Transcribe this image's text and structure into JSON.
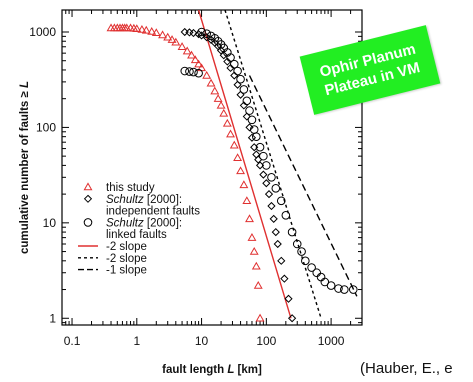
{
  "badge": {
    "line1": "Ophir Planum",
    "line2": "Plateau in VM",
    "color": "#22ee22"
  },
  "citation": "(Hauber, E., e",
  "chart_data": {
    "type": "scatter",
    "xscale": "log",
    "yscale": "log",
    "xlim": [
      0.07,
      3000
    ],
    "ylim": [
      0.85,
      1700
    ],
    "xlabel_parts": [
      "fault length ",
      "L",
      " [km]"
    ],
    "ylabel_parts": [
      "cumulative number of faults ≥ ",
      "L"
    ],
    "xticks": [
      {
        "value": 0.1,
        "label": "0.1"
      },
      {
        "value": 1,
        "label": "1"
      },
      {
        "value": 10,
        "label": "10"
      },
      {
        "value": 100,
        "label": "100"
      },
      {
        "value": 1000,
        "label": "1000"
      }
    ],
    "yticks": [
      {
        "value": 1,
        "label": "1"
      },
      {
        "value": 10,
        "label": "10"
      },
      {
        "value": 100,
        "label": "100"
      },
      {
        "value": 1000,
        "label": "1000"
      }
    ],
    "series": [
      {
        "name": "this study",
        "marker": "triangle",
        "color": "#e03030",
        "points": [
          [
            0.4,
            1100
          ],
          [
            0.45,
            1100
          ],
          [
            0.5,
            1100
          ],
          [
            0.55,
            1100
          ],
          [
            0.6,
            1100
          ],
          [
            0.65,
            1100
          ],
          [
            0.7,
            1100
          ],
          [
            0.8,
            1100
          ],
          [
            0.9,
            1090
          ],
          [
            1.0,
            1080
          ],
          [
            1.2,
            1060
          ],
          [
            1.4,
            1040
          ],
          [
            1.7,
            1010
          ],
          [
            2.0,
            980
          ],
          [
            2.5,
            930
          ],
          [
            3.0,
            880
          ],
          [
            3.5,
            830
          ],
          [
            4.0,
            780
          ],
          [
            5.0,
            700
          ],
          [
            6.0,
            630
          ],
          [
            7.0,
            570
          ],
          [
            8.0,
            510
          ],
          [
            9.0,
            460
          ],
          [
            10,
            420
          ],
          [
            12,
            350
          ],
          [
            14,
            290
          ],
          [
            16,
            240
          ],
          [
            18,
            200
          ],
          [
            20,
            170
          ],
          [
            22,
            140
          ],
          [
            25,
            110
          ],
          [
            28,
            85
          ],
          [
            32,
            65
          ],
          [
            36,
            48
          ],
          [
            40,
            35
          ],
          [
            45,
            25
          ],
          [
            50,
            17
          ],
          [
            55,
            11
          ],
          [
            60,
            7
          ],
          [
            65,
            5
          ],
          [
            70,
            3.5
          ],
          [
            75,
            2.2
          ],
          [
            80,
            1
          ]
        ]
      },
      {
        "name": "independent faults",
        "marker": "diamond",
        "color": "#000000",
        "points": [
          [
            5.5,
            1000
          ],
          [
            6.5,
            990
          ],
          [
            7.5,
            975
          ],
          [
            9,
            950
          ],
          [
            10,
            920
          ],
          [
            12,
            880
          ],
          [
            14,
            830
          ],
          [
            16,
            770
          ],
          [
            18,
            710
          ],
          [
            20,
            640
          ],
          [
            22,
            570
          ],
          [
            25,
            490
          ],
          [
            28,
            420
          ],
          [
            32,
            350
          ],
          [
            36,
            280
          ],
          [
            40,
            220
          ],
          [
            45,
            170
          ],
          [
            50,
            130
          ],
          [
            55,
            100
          ],
          [
            60,
            78
          ],
          [
            65,
            62
          ],
          [
            70,
            52
          ],
          [
            75,
            46
          ],
          [
            80,
            40
          ],
          [
            90,
            32
          ],
          [
            100,
            26
          ],
          [
            110,
            20
          ],
          [
            120,
            15
          ],
          [
            130,
            11
          ],
          [
            140,
            8
          ],
          [
            150,
            6
          ],
          [
            170,
            4
          ],
          [
            190,
            2.6
          ],
          [
            220,
            1.6
          ],
          [
            250,
            1
          ]
        ]
      },
      {
        "name": "linked faults",
        "marker": "circle",
        "color": "#000000",
        "points": [
          [
            5.5,
            390
          ],
          [
            6.5,
            385
          ],
          [
            7.5,
            380
          ],
          [
            9,
            370
          ],
          [
            10,
            1000
          ],
          [
            12,
            960
          ],
          [
            14,
            910
          ],
          [
            16,
            860
          ],
          [
            18,
            800
          ],
          [
            20,
            740
          ],
          [
            22,
            680
          ],
          [
            25,
            610
          ],
          [
            28,
            540
          ],
          [
            32,
            460
          ],
          [
            36,
            390
          ],
          [
            40,
            320
          ],
          [
            45,
            250
          ],
          [
            50,
            190
          ],
          [
            55,
            150
          ],
          [
            60,
            120
          ],
          [
            65,
            95
          ],
          [
            70,
            80
          ],
          [
            80,
            62
          ],
          [
            90,
            50
          ],
          [
            100,
            40
          ],
          [
            120,
            30
          ],
          [
            140,
            23
          ],
          [
            170,
            17
          ],
          [
            200,
            12
          ],
          [
            250,
            8
          ],
          [
            300,
            6
          ],
          [
            350,
            5
          ],
          [
            400,
            4
          ],
          [
            500,
            3.4
          ],
          [
            600,
            3
          ],
          [
            700,
            2.7
          ],
          [
            800,
            2.4
          ],
          [
            1000,
            2.2
          ],
          [
            1300,
            2.05
          ],
          [
            1600,
            2
          ],
          [
            2200,
            2
          ]
        ]
      }
    ],
    "lines": [
      {
        "name": "-2 slope",
        "style": "solid",
        "color": "#e03030",
        "from": [
          9,
          1700
        ],
        "to": [
          240,
          1
        ]
      },
      {
        "name": "-2 slope",
        "style": "dotted",
        "color": "#000000",
        "from": [
          23,
          1700
        ],
        "to": [
          700,
          1
        ]
      },
      {
        "name": "-1 slope",
        "style": "dashed",
        "color": "#000000",
        "from": [
          55,
          350
        ],
        "to": [
          2500,
          1.7
        ]
      }
    ],
    "legend": {
      "placement": "lower-left",
      "entries": [
        {
          "marker": "triangle",
          "color": "#e03030",
          "parts": [
            {
              "t": "this study",
              "i": false
            }
          ]
        },
        {
          "marker": "diamond",
          "color": "#000000",
          "parts": [
            {
              "t": "Schultz",
              "i": true
            },
            {
              "t": " [2000]:",
              "i": false
            }
          ]
        },
        {
          "marker": "",
          "color": "",
          "parts": [
            {
              "t": "independent faults",
              "i": false
            }
          ]
        },
        {
          "marker": "circle",
          "color": "#000000",
          "parts": [
            {
              "t": "Schultz",
              "i": true
            },
            {
              "t": " [2000]:",
              "i": false
            }
          ]
        },
        {
          "marker": "",
          "color": "",
          "parts": [
            {
              "t": "linked faults",
              "i": false
            }
          ]
        },
        {
          "marker": "line-solid",
          "color": "#e03030",
          "parts": [
            {
              "t": "-2 slope",
              "i": false
            }
          ]
        },
        {
          "marker": "line-dotted",
          "color": "#000000",
          "parts": [
            {
              "t": "-2 slope",
              "i": false
            }
          ]
        },
        {
          "marker": "line-dashed",
          "color": "#000000",
          "parts": [
            {
              "t": "-1 slope",
              "i": false
            }
          ]
        }
      ]
    }
  }
}
